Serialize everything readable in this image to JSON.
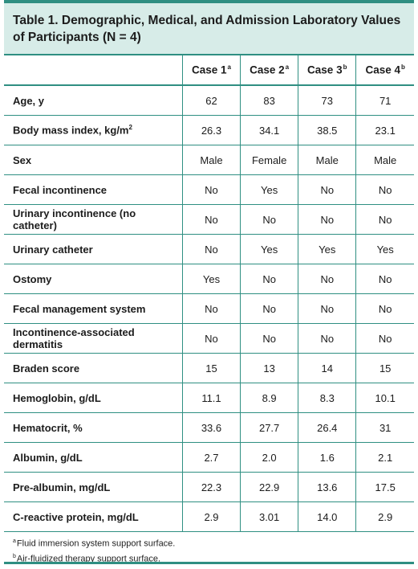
{
  "title": "Table 1. Demographic, Medical, and Admission Laboratory Values of Participants (N = 4)",
  "columns": [
    {
      "label": "Case 1",
      "sup": "a"
    },
    {
      "label": "Case 2",
      "sup": "a"
    },
    {
      "label": "Case 3",
      "sup": "b"
    },
    {
      "label": "Case 4",
      "sup": "b"
    }
  ],
  "rows": [
    {
      "label": "Age, y",
      "values": [
        "62",
        "83",
        "73",
        "71"
      ]
    },
    {
      "label": "Body mass index, kg/m",
      "label_sup": "2",
      "values": [
        "26.3",
        "34.1",
        "38.5",
        "23.1"
      ]
    },
    {
      "label": "Sex",
      "values": [
        "Male",
        "Female",
        "Male",
        "Male"
      ]
    },
    {
      "label": "Fecal incontinence",
      "values": [
        "No",
        "Yes",
        "No",
        "No"
      ]
    },
    {
      "label": "Urinary incontinence (no catheter)",
      "values": [
        "No",
        "No",
        "No",
        "No"
      ]
    },
    {
      "label": "Urinary catheter",
      "values": [
        "No",
        "Yes",
        "Yes",
        "Yes"
      ]
    },
    {
      "label": "Ostomy",
      "values": [
        "Yes",
        "No",
        "No",
        "No"
      ]
    },
    {
      "label": "Fecal management system",
      "values": [
        "No",
        "No",
        "No",
        "No"
      ]
    },
    {
      "label": "Incontinence-associated dermatitis",
      "values": [
        "No",
        "No",
        "No",
        "No"
      ]
    },
    {
      "label": "Braden score",
      "values": [
        "15",
        "13",
        "14",
        "15"
      ]
    },
    {
      "label": "Hemoglobin, g/dL",
      "values": [
        "11.1",
        "8.9",
        "8.3",
        "10.1"
      ]
    },
    {
      "label": "Hematocrit, %",
      "values": [
        "33.6",
        "27.7",
        "26.4",
        "31"
      ]
    },
    {
      "label": "Albumin, g/dL",
      "values": [
        "2.7",
        "2.0",
        "1.6",
        "2.1"
      ]
    },
    {
      "label": "Pre-albumin, mg/dL",
      "values": [
        "22.3",
        "22.9",
        "13.6",
        "17.5"
      ]
    },
    {
      "label": "C-reactive protein, mg/dL",
      "values": [
        "2.9",
        "3.01",
        "14.0",
        "2.9"
      ]
    }
  ],
  "footnotes": [
    {
      "sup": "a",
      "text": "Fluid immersion system support surface."
    },
    {
      "sup": "b",
      "text": "Air-fluidized therapy support surface."
    }
  ],
  "colors": {
    "accent": "#2f8f82",
    "title_bg": "#d7ece8"
  }
}
